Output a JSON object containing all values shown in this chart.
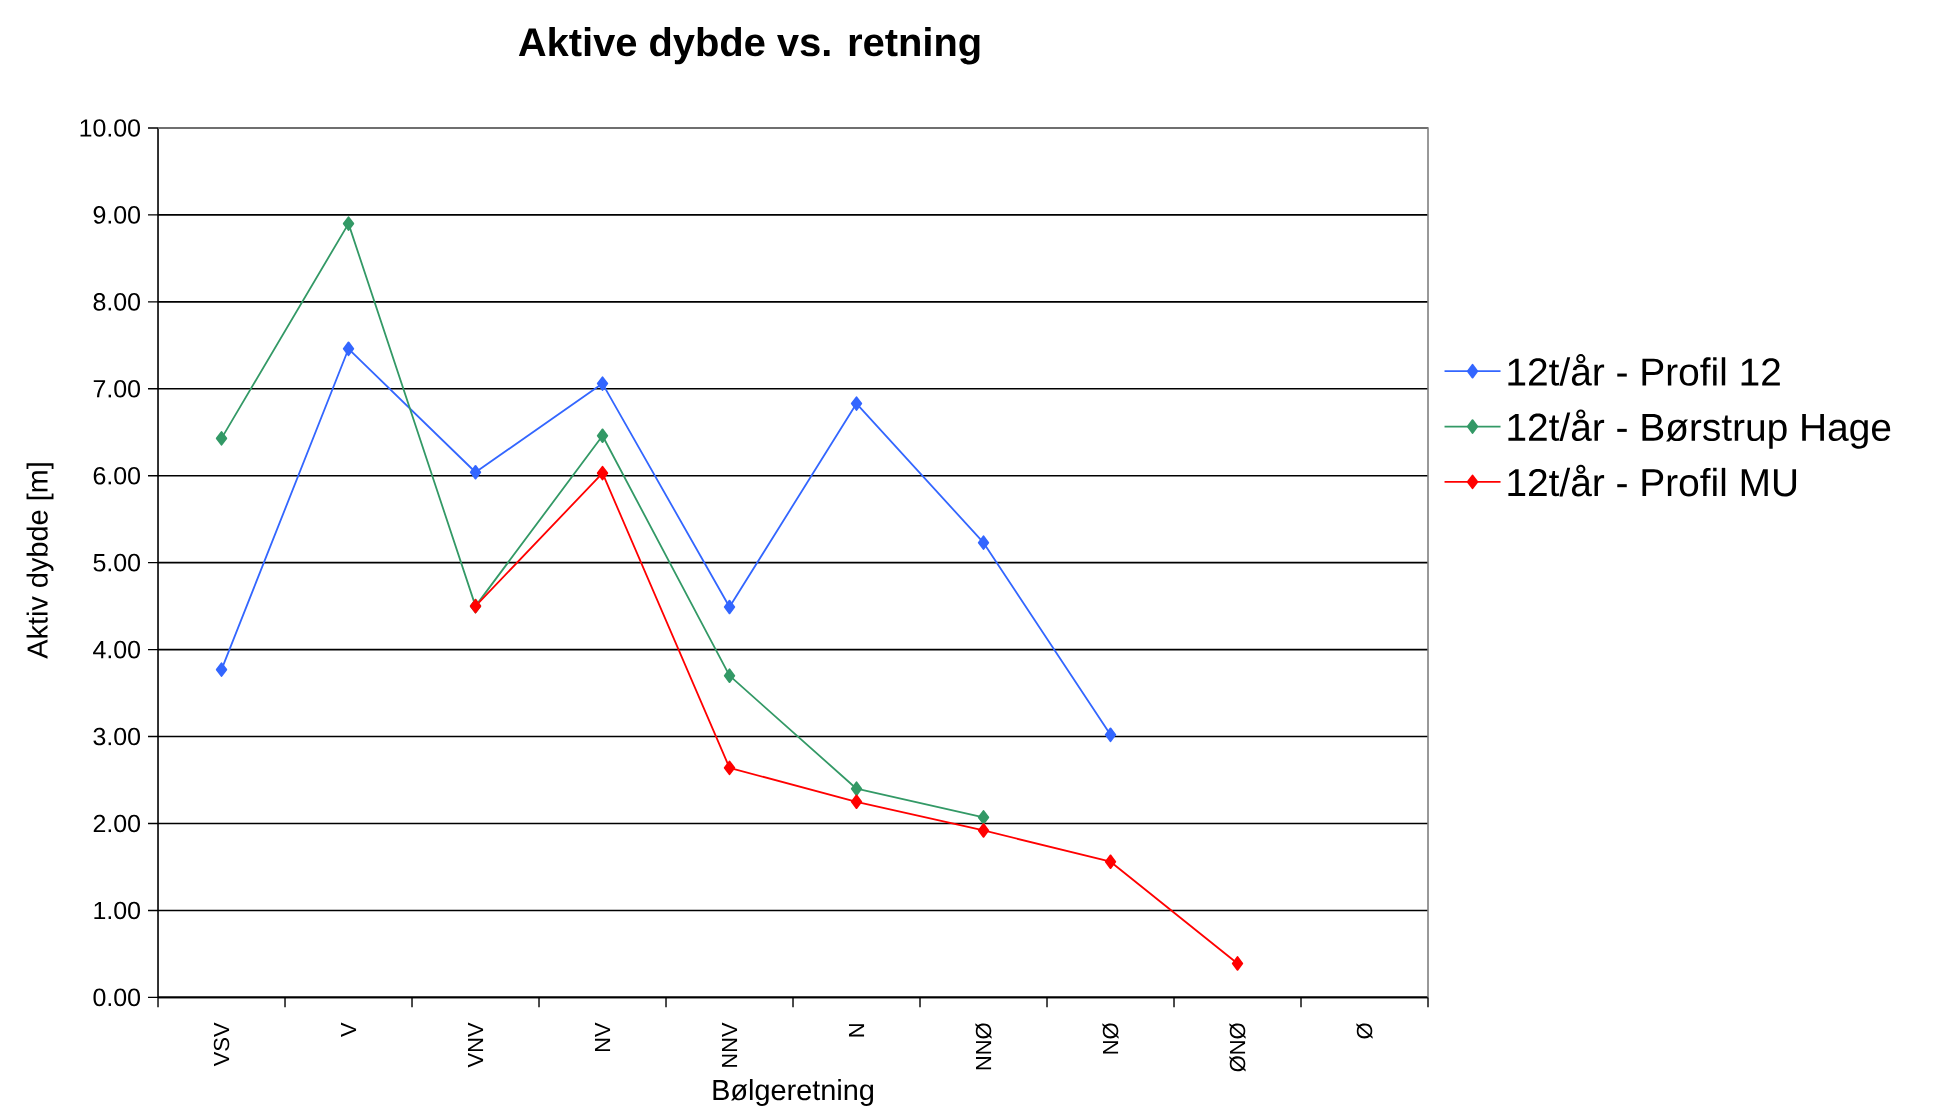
{
  "chart_data": {
    "type": "line",
    "title": "Aktive dybde vs. retning",
    "xlabel": "Bølgeretning",
    "ylabel": "Aktiv dybde [m]",
    "categories": [
      "VSV",
      "V",
      "VNV",
      "NV",
      "NNV",
      "N",
      "NNØ",
      "NØ",
      "ØNØ",
      "Ø"
    ],
    "series": [
      {
        "name": "12t/år - Profil 12",
        "color": "#3366ff",
        "values": [
          3.77,
          7.46,
          6.04,
          7.06,
          4.49,
          6.83,
          5.23,
          3.02,
          null,
          null
        ]
      },
      {
        "name": "12t/år - Børstrup Hage",
        "color": "#339966",
        "values": [
          6.43,
          8.9,
          4.5,
          6.46,
          3.7,
          2.4,
          2.07,
          null,
          null,
          null
        ]
      },
      {
        "name": "12t/år - Profil MU",
        "color": "#ff0000",
        "values": [
          null,
          null,
          4.5,
          6.03,
          2.64,
          2.25,
          1.92,
          1.56,
          0.39,
          null
        ]
      }
    ],
    "ylim": [
      0,
      10
    ],
    "yticks": [
      {
        "value": 0,
        "label": "0.00"
      },
      {
        "value": 1,
        "label": "1.00"
      },
      {
        "value": 2,
        "label": "2.00"
      },
      {
        "value": 3,
        "label": "3.00"
      },
      {
        "value": 4,
        "label": "4.00"
      },
      {
        "value": 5,
        "label": "5.00"
      },
      {
        "value": 6,
        "label": "6.00"
      },
      {
        "value": 7,
        "label": "7.00"
      },
      {
        "value": 8,
        "label": "8.00"
      },
      {
        "value": 9,
        "label": "9.00"
      },
      {
        "value": 10,
        "label": "10.00"
      }
    ],
    "grid": "y",
    "legend": "right",
    "marker": "diamond",
    "line_style": "solid"
  }
}
